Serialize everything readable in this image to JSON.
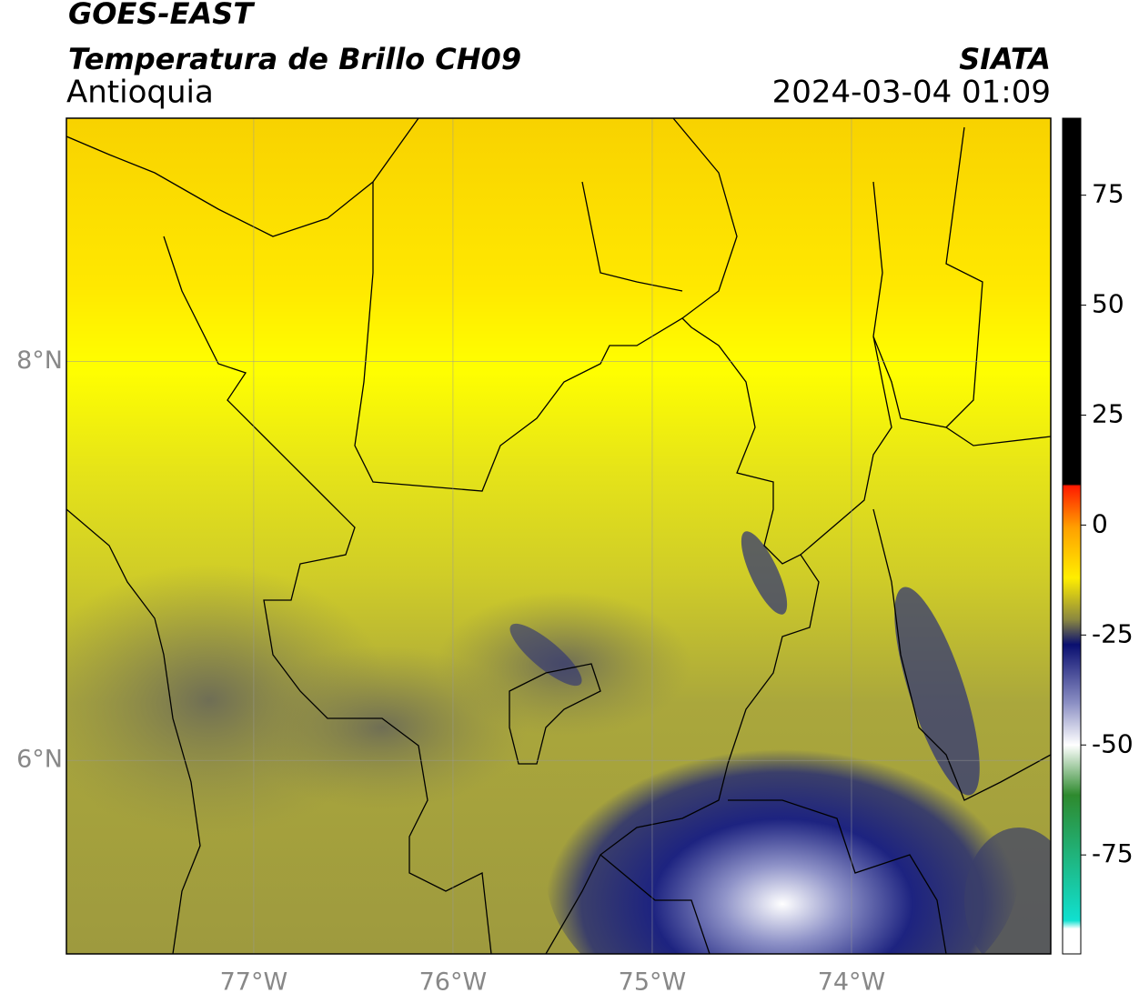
{
  "header": {
    "title": "GOES-EAST",
    "subtitle": "Temperatura de Brillo CH09",
    "region": "Antioquia",
    "source": "SIATA",
    "datetime": "2024-03-04 01:09"
  },
  "map": {
    "xlim": [
      -77.94,
      -73.0
    ],
    "ylim": [
      5.03,
      9.22
    ],
    "xticks": [
      {
        "value": -77,
        "label": "77°W"
      },
      {
        "value": -76,
        "label": "76°W"
      },
      {
        "value": -75,
        "label": "75°W"
      },
      {
        "value": -74,
        "label": "74°W"
      }
    ],
    "yticks": [
      {
        "value": 8,
        "label": "8°N"
      },
      {
        "value": 6,
        "label": "6°N"
      }
    ],
    "grid": true
  },
  "colorbar": {
    "ylim": [
      -97.5,
      92.5
    ],
    "yticks": [
      75,
      50,
      25,
      0,
      -25,
      -50,
      -75
    ]
  }
}
